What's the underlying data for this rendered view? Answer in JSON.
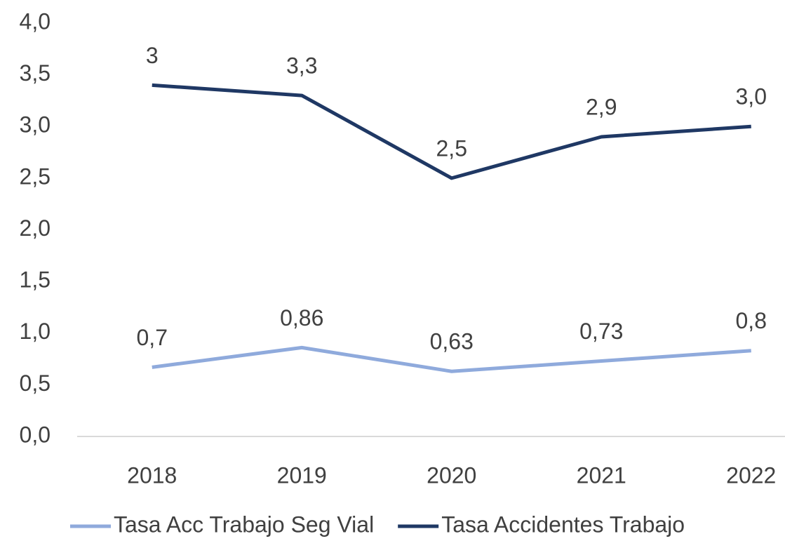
{
  "chart_data": {
    "type": "line",
    "categories": [
      "2018",
      "2019",
      "2020",
      "2021",
      "2022"
    ],
    "series": [
      {
        "name": "Tasa Acc Trabajo Seg Vial",
        "color": "#8faadc",
        "values": [
          0.67,
          0.86,
          0.63,
          0.73,
          0.83
        ],
        "value_labels": [
          "0,7",
          "0,86",
          "0,63",
          "0,73",
          "0,8"
        ]
      },
      {
        "name": "Tasa Accidentes Trabajo",
        "color": "#1f3864",
        "values": [
          3.4,
          3.3,
          2.5,
          2.9,
          3.0
        ],
        "value_labels": [
          "3",
          "3,3",
          "2,5",
          "2,9",
          "3,0"
        ]
      }
    ],
    "ylim": [
      0,
      4
    ],
    "yticks": [
      {
        "value": 0,
        "label": "0,0"
      },
      {
        "value": 0.5,
        "label": "0,5"
      },
      {
        "value": 1,
        "label": "1,0"
      },
      {
        "value": 1.5,
        "label": "1,5"
      },
      {
        "value": 2,
        "label": "2,0"
      },
      {
        "value": 2.5,
        "label": "2,5"
      },
      {
        "value": 3,
        "label": "3,0"
      },
      {
        "value": 3.5,
        "label": "3,5"
      },
      {
        "value": 4,
        "label": "4,0"
      }
    ],
    "grid": false,
    "legend": "bottom"
  }
}
